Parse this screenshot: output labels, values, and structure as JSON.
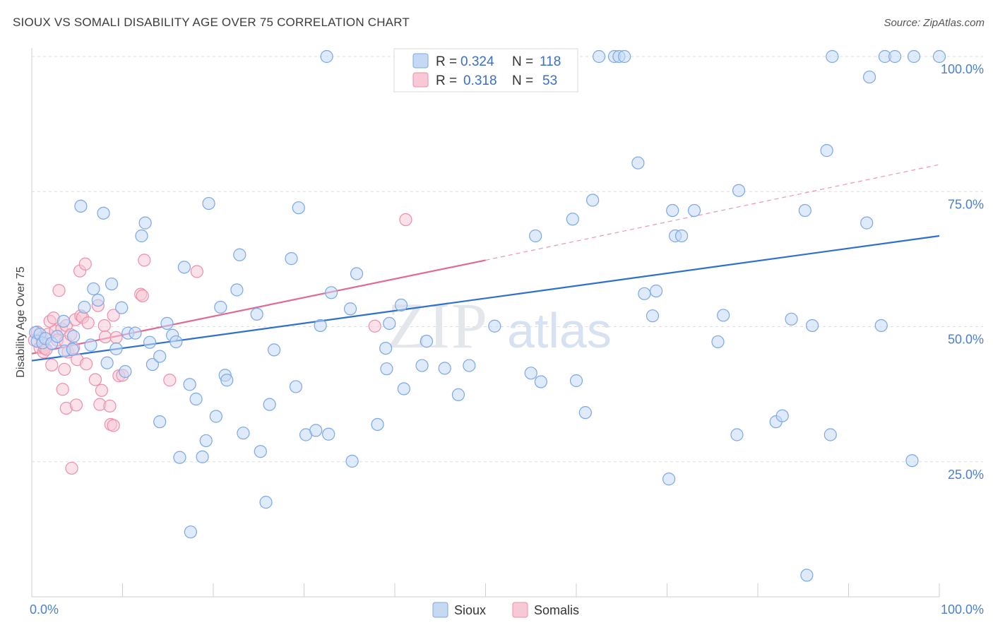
{
  "title": "SIOUX VS SOMALI DISABILITY AGE OVER 75 CORRELATION CHART",
  "source": "Source: ZipAtlas.com",
  "watermark": {
    "zip": "ZIP",
    "atlas": "atlas"
  },
  "colors": {
    "sioux_fill": "#c5d9f5",
    "sioux_stroke": "#7aa8e6",
    "sioux_line": "#2f6fd0",
    "somali_fill": "#f8c8d6",
    "somali_stroke": "#eb8fab",
    "somali_line": "#e06a93",
    "grid": "#dcdcdc",
    "axis_text": "#4a7fd0"
  },
  "legend": {
    "r_label": "R =",
    "n_label": "N =",
    "sioux": {
      "r": "0.324",
      "n": "118"
    },
    "somali": {
      "r": "0.318",
      "n": "53"
    }
  },
  "bottom_legend": {
    "sioux": "Sioux",
    "somali": "Somalis"
  },
  "chart_data": {
    "type": "scatter",
    "title": "SIOUX VS SOMALI DISABILITY AGE OVER 75 CORRELATION CHART",
    "xlabel": "",
    "ylabel": "Disability Age Over 75",
    "xlim": [
      0,
      100
    ],
    "ylim": [
      0,
      100
    ],
    "x_tick_labels": [
      "0.0%",
      "100.0%"
    ],
    "y_ticks": [
      25,
      50,
      75,
      100
    ],
    "y_tick_labels": [
      "25.0%",
      "50.0%",
      "75.0%",
      "100.0%"
    ],
    "grid": true,
    "series": [
      {
        "name": "Sioux",
        "r": 0.324,
        "n": 118,
        "trend": {
          "x0": 0,
          "y0": 43.7,
          "x1": 100,
          "y1": 66.8
        },
        "points": [
          [
            0.4,
            48.9
          ],
          [
            0.6,
            47.3
          ],
          [
            0.9,
            48.6
          ],
          [
            1.2,
            47.0
          ],
          [
            1.5,
            47.8
          ],
          [
            2.2,
            46.9
          ],
          [
            2.8,
            48.2
          ],
          [
            3.5,
            51.0
          ],
          [
            3.6,
            45.5
          ],
          [
            4.5,
            45.8
          ],
          [
            4.6,
            48.2
          ],
          [
            5.4,
            72.3
          ],
          [
            5.8,
            53.6
          ],
          [
            6.5,
            46.6
          ],
          [
            6.8,
            57.0
          ],
          [
            7.3,
            54.9
          ],
          [
            7.9,
            71.0
          ],
          [
            8.3,
            43.3
          ],
          [
            8.8,
            57.9
          ],
          [
            9.3,
            45.9
          ],
          [
            9.9,
            53.5
          ],
          [
            10.3,
            41.7
          ],
          [
            10.6,
            48.8
          ],
          [
            11.4,
            48.8
          ],
          [
            12.1,
            66.8
          ],
          [
            12.5,
            69.2
          ],
          [
            13.0,
            47.1
          ],
          [
            13.3,
            43.0
          ],
          [
            14.1,
            44.5
          ],
          [
            14.1,
            32.4
          ],
          [
            14.9,
            50.6
          ],
          [
            15.5,
            48.4
          ],
          [
            15.9,
            47.2
          ],
          [
            16.3,
            25.8
          ],
          [
            16.8,
            61.0
          ],
          [
            17.4,
            39.3
          ],
          [
            17.5,
            12.0
          ],
          [
            18.1,
            36.6
          ],
          [
            18.8,
            25.9
          ],
          [
            19.2,
            28.9
          ],
          [
            19.5,
            72.8
          ],
          [
            20.3,
            33.4
          ],
          [
            20.8,
            53.6
          ],
          [
            21.3,
            41.0
          ],
          [
            21.5,
            40.1
          ],
          [
            22.6,
            56.8
          ],
          [
            22.9,
            63.3
          ],
          [
            23.3,
            30.3
          ],
          [
            24.8,
            52.3
          ],
          [
            25.2,
            26.9
          ],
          [
            25.8,
            17.5
          ],
          [
            26.2,
            35.6
          ],
          [
            26.7,
            45.7
          ],
          [
            28.6,
            62.6
          ],
          [
            29.1,
            38.9
          ],
          [
            29.4,
            72.0
          ],
          [
            30.2,
            30.0
          ],
          [
            31.3,
            30.8
          ],
          [
            31.8,
            50.2
          ],
          [
            32.5,
            100.0
          ],
          [
            32.7,
            30.1
          ],
          [
            33.0,
            56.3
          ],
          [
            35.1,
            53.3
          ],
          [
            35.3,
            25.1
          ],
          [
            35.8,
            59.8
          ],
          [
            38.1,
            31.9
          ],
          [
            39.0,
            46.0
          ],
          [
            39.1,
            42.2
          ],
          [
            39.4,
            50.6
          ],
          [
            40.7,
            54.0
          ],
          [
            41.0,
            38.5
          ],
          [
            43.0,
            42.8
          ],
          [
            43.5,
            47.3
          ],
          [
            45.5,
            42.3
          ],
          [
            47.0,
            37.4
          ],
          [
            48.2,
            42.8
          ],
          [
            51.0,
            50.1
          ],
          [
            55.0,
            41.4
          ],
          [
            55.5,
            66.8
          ],
          [
            56.1,
            39.8
          ],
          [
            59.6,
            69.9
          ],
          [
            60.0,
            40.0
          ],
          [
            61.0,
            34.1
          ],
          [
            61.8,
            73.4
          ],
          [
            62.5,
            100.0
          ],
          [
            64.2,
            100.0
          ],
          [
            64.7,
            100.0
          ],
          [
            65.3,
            100.0
          ],
          [
            66.8,
            80.3
          ],
          [
            67.5,
            56.1
          ],
          [
            68.4,
            52.0
          ],
          [
            68.8,
            56.6
          ],
          [
            70.2,
            21.8
          ],
          [
            70.6,
            71.5
          ],
          [
            70.9,
            66.8
          ],
          [
            71.6,
            66.8
          ],
          [
            73.0,
            71.5
          ],
          [
            75.6,
            47.2
          ],
          [
            76.2,
            52.1
          ],
          [
            77.7,
            30.0
          ],
          [
            77.9,
            75.2
          ],
          [
            82.0,
            32.4
          ],
          [
            82.7,
            33.5
          ],
          [
            83.7,
            51.4
          ],
          [
            85.2,
            71.5
          ],
          [
            85.4,
            4.0
          ],
          [
            86.0,
            50.2
          ],
          [
            87.6,
            82.6
          ],
          [
            88.0,
            30.0
          ],
          [
            88.2,
            100.0
          ],
          [
            92.0,
            69.2
          ],
          [
            92.3,
            96.2
          ],
          [
            93.6,
            50.2
          ],
          [
            94.0,
            100.0
          ],
          [
            95.1,
            100.0
          ],
          [
            97.0,
            25.2
          ],
          [
            97.2,
            100.0
          ],
          [
            100.0,
            100.0
          ]
        ]
      },
      {
        "name": "Somalis",
        "r": 0.318,
        "n": 53,
        "trend": {
          "x0": 0,
          "y0": 45.0,
          "x1": 50,
          "y1": 62.3
        },
        "trend_extension": {
          "x0": 50,
          "y0": 62.3,
          "x1": 100,
          "y1": 80.0
        },
        "points": [
          [
            0.3,
            47.5
          ],
          [
            0.6,
            49.0
          ],
          [
            0.9,
            46.1
          ],
          [
            1.1,
            47.9
          ],
          [
            1.3,
            45.3
          ],
          [
            1.4,
            46.0
          ],
          [
            1.6,
            45.8
          ],
          [
            1.8,
            48.6
          ],
          [
            2.0,
            51.0
          ],
          [
            2.2,
            42.9
          ],
          [
            2.4,
            51.6
          ],
          [
            2.6,
            49.2
          ],
          [
            2.8,
            47.5
          ],
          [
            3.0,
            56.7
          ],
          [
            3.3,
            49.6
          ],
          [
            3.4,
            38.4
          ],
          [
            3.6,
            42.1
          ],
          [
            3.7,
            47.2
          ],
          [
            3.8,
            50.2
          ],
          [
            3.8,
            34.9
          ],
          [
            4.0,
            45.3
          ],
          [
            4.3,
            48.5
          ],
          [
            4.4,
            23.8
          ],
          [
            4.6,
            46.1
          ],
          [
            4.8,
            51.3
          ],
          [
            4.9,
            35.5
          ],
          [
            5.0,
            43.9
          ],
          [
            5.3,
            60.3
          ],
          [
            5.4,
            52.0
          ],
          [
            5.6,
            51.7
          ],
          [
            5.9,
            61.6
          ],
          [
            6.0,
            43.1
          ],
          [
            6.2,
            50.7
          ],
          [
            7.0,
            40.2
          ],
          [
            7.3,
            53.9
          ],
          [
            7.5,
            35.6
          ],
          [
            7.7,
            38.2
          ],
          [
            8.0,
            50.2
          ],
          [
            8.1,
            48.1
          ],
          [
            8.6,
            35.3
          ],
          [
            8.7,
            31.9
          ],
          [
            9.0,
            52.1
          ],
          [
            9.0,
            31.7
          ],
          [
            9.3,
            48.0
          ],
          [
            9.6,
            40.9
          ],
          [
            10.0,
            41.0
          ],
          [
            12.0,
            56.0
          ],
          [
            12.2,
            55.7
          ],
          [
            12.4,
            62.3
          ],
          [
            15.2,
            40.1
          ],
          [
            18.2,
            60.2
          ],
          [
            37.8,
            50.1
          ],
          [
            41.2,
            69.8
          ]
        ]
      }
    ]
  }
}
